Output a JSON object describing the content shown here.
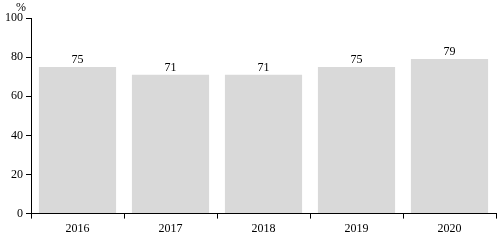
{
  "chart_data": {
    "type": "bar",
    "ylabel": "%",
    "categories": [
      "2016",
      "2017",
      "2018",
      "2019",
      "2020"
    ],
    "values": [
      75,
      71,
      71,
      75,
      79
    ],
    "color": "#d9d9d9",
    "ylim": [
      0,
      100
    ],
    "yticks": [
      0,
      20,
      40,
      60,
      80,
      100
    ],
    "grid": false,
    "data_labels": true
  }
}
